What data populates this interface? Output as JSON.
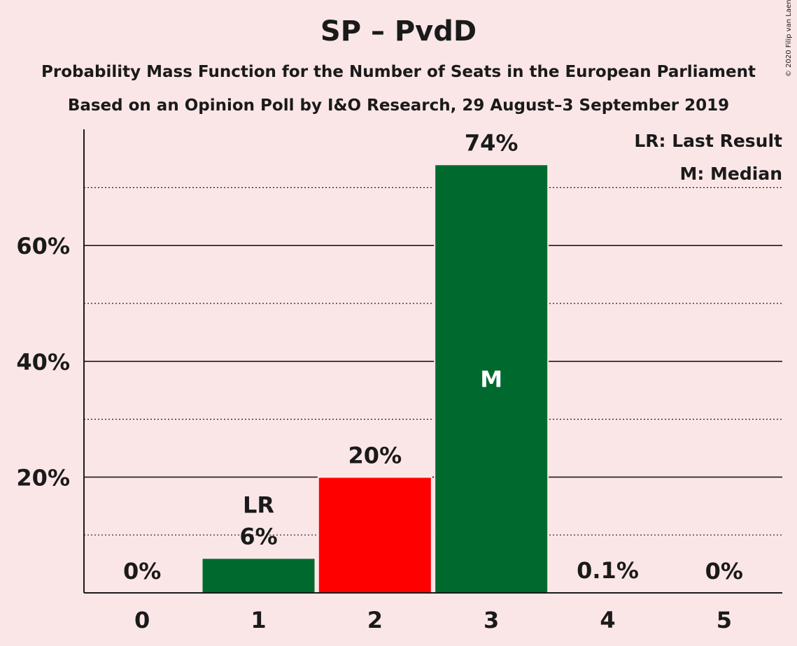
{
  "header": {
    "title": "SP – PvdD",
    "subtitle1": "Probability Mass Function for the Number of Seats in the European Parliament",
    "subtitle2": "Based on an Opinion Poll by I&O Research, 29 August–3 September 2019",
    "copyright": "© 2020 Filip van Laenen"
  },
  "legend": {
    "last_result": "LR: Last Result",
    "median": "M: Median"
  },
  "chart_data": {
    "type": "bar",
    "categories": [
      "0",
      "1",
      "2",
      "3",
      "4",
      "5"
    ],
    "values": [
      0,
      6,
      20,
      74,
      0.1,
      0
    ],
    "data_labels": [
      "0%",
      "6%",
      "20%",
      "74%",
      "0.1%",
      "0%"
    ],
    "bar_colors": [
      "#006a2e",
      "#006a2e",
      "#ff0000",
      "#006a2e",
      "#006a2e",
      "#006a2e"
    ],
    "y_ticks": [
      {
        "value": 20,
        "label": "20%"
      },
      {
        "value": 40,
        "label": "40%"
      },
      {
        "value": 60,
        "label": "60%"
      }
    ],
    "ylim": [
      0,
      80
    ],
    "grid": true,
    "last_result_index": 1,
    "last_result_label": "LR",
    "median_index": 3,
    "median_label": "M",
    "legend_position": "top-right"
  }
}
